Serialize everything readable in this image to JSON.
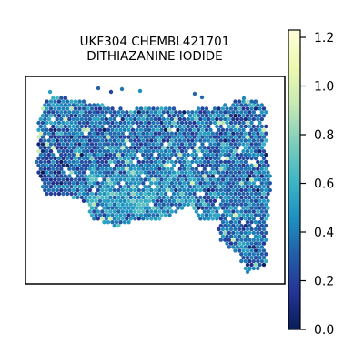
{
  "chart_data": {
    "type": "heatmap",
    "subtype": "spatial hexbin scatter",
    "title_lines": [
      "UKF304 CHEMBL421701",
      "DITHIAZANINE IODIDE"
    ],
    "colorbar": {
      "colormap": "YlGnBu_r",
      "range": [
        0.0,
        1.23
      ],
      "ticks": [
        0.0,
        0.2,
        0.4,
        0.6,
        0.8,
        1.0,
        1.2
      ],
      "tick_labels": [
        "0.0",
        "0.2",
        "0.4",
        "0.6",
        "0.8",
        "1.0",
        "1.2"
      ]
    },
    "axes": {
      "x_ticks": "none",
      "y_ticks": "none",
      "grid": false
    },
    "value_distribution": {
      "typical": 0.35,
      "spread": 0.13,
      "max_observed": 1.0
    }
  },
  "colors": {
    "stops": [
      "#081d58",
      "#253494",
      "#225ea8",
      "#1d91c0",
      "#41b6c4",
      "#7fcdbb",
      "#c7e9b4",
      "#edf8b1",
      "#ffffd9"
    ]
  }
}
